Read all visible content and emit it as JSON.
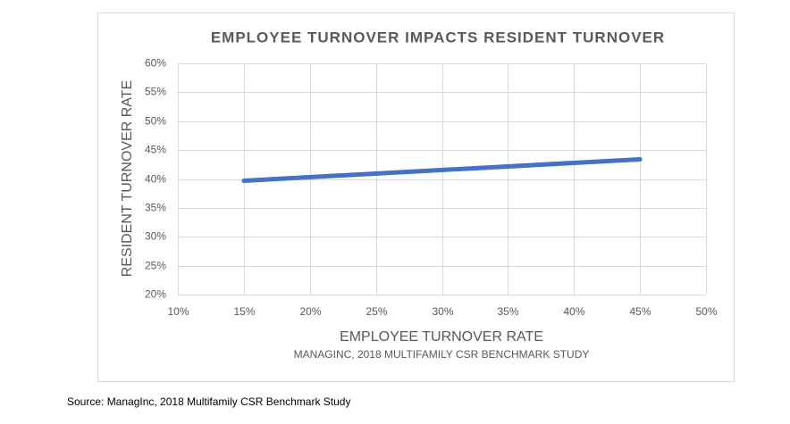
{
  "chart_data": {
    "type": "line",
    "title": "EMPLOYEE TURNOVER IMPACTS RESIDENT TURNOVER",
    "x_label": "EMPLOYEE TURNOVER RATE",
    "y_label": "RESIDENT TURNOVER RATE",
    "note": "MANAGINC, 2018 MULTIFAMILY CSR BENCHMARK STUDY",
    "source": "Source: ManagInc, 2018 Multifamily CSR Benchmark Study",
    "x": [
      15,
      45
    ],
    "series": [
      {
        "color": "#4472c4",
        "values": [
          39.7,
          43.4
        ]
      }
    ],
    "xlim": [
      10,
      50
    ],
    "xticks": [
      {
        "value": 10,
        "label": "10%"
      },
      {
        "value": 15,
        "label": "15%"
      },
      {
        "value": 20,
        "label": "20%"
      },
      {
        "value": 25,
        "label": "25%"
      },
      {
        "value": 30,
        "label": "30%"
      },
      {
        "value": 35,
        "label": "35%"
      },
      {
        "value": 40,
        "label": "40%"
      },
      {
        "value": 45,
        "label": "45%"
      },
      {
        "value": 50,
        "label": "50%"
      }
    ],
    "ylim": [
      20,
      60
    ],
    "yticks": [
      {
        "value": 20,
        "label": "20%"
      },
      {
        "value": 25,
        "label": "25%"
      },
      {
        "value": 30,
        "label": "30%"
      },
      {
        "value": 35,
        "label": "35%"
      },
      {
        "value": 40,
        "label": "40%"
      },
      {
        "value": 45,
        "label": "45%"
      },
      {
        "value": 50,
        "label": "50%"
      },
      {
        "value": 55,
        "label": "55%"
      },
      {
        "value": 60,
        "label": "60%"
      }
    ],
    "grid": true
  }
}
